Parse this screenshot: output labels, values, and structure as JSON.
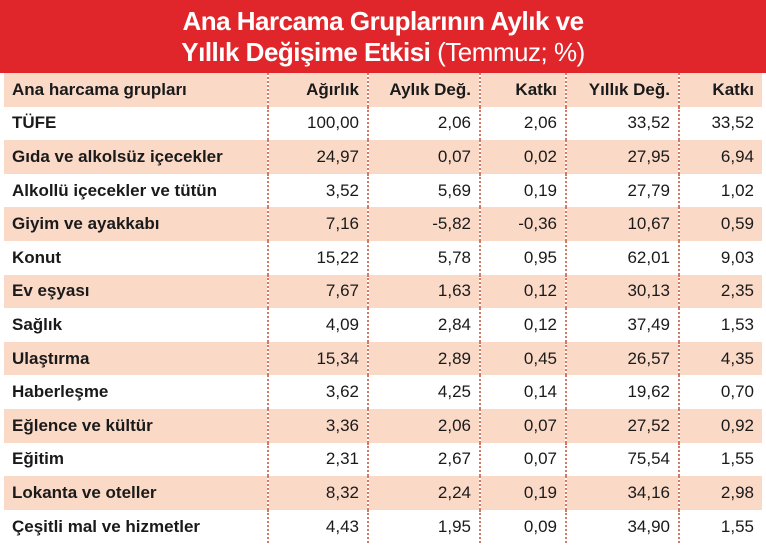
{
  "title": {
    "line1": "Ana Harcama Gruplarının Aylık ve",
    "line2_bold": "Yıllık Değişime Etkisi",
    "line2_normal": " (Temmuz; %)"
  },
  "colors": {
    "title_background": "#e0262b",
    "row_shade": "#fbd9c7",
    "divider": "#d27a66"
  },
  "chart_data": {
    "type": "table",
    "columns": [
      "Ana harcama grupları",
      "Ağırlık",
      "Aylık Değ.",
      "Katkı",
      "Yıllık Değ.",
      "Katkı"
    ],
    "rows": [
      [
        "TÜFE",
        "100,00",
        "2,06",
        "2,06",
        "33,52",
        "33,52"
      ],
      [
        "Gıda ve alkolsüz içecekler",
        "24,97",
        "0,07",
        "0,02",
        "27,95",
        "6,94"
      ],
      [
        "Alkollü içecekler ve tütün",
        "3,52",
        "5,69",
        "0,19",
        "27,79",
        "1,02"
      ],
      [
        "Giyim ve ayakkabı",
        "7,16",
        "-5,82",
        "-0,36",
        "10,67",
        "0,59"
      ],
      [
        "Konut",
        "15,22",
        "5,78",
        "0,95",
        "62,01",
        "9,03"
      ],
      [
        "Ev eşyası",
        "7,67",
        "1,63",
        "0,12",
        "30,13",
        "2,35"
      ],
      [
        "Sağlık",
        "4,09",
        "2,84",
        "0,12",
        "37,49",
        "1,53"
      ],
      [
        "Ulaştırma",
        "15,34",
        "2,89",
        "0,45",
        "26,57",
        "4,35"
      ],
      [
        "Haberleşme",
        "3,62",
        "4,25",
        "0,14",
        "19,62",
        "0,70"
      ],
      [
        "Eğlence ve kültür",
        "3,36",
        "2,06",
        "0,07",
        "27,52",
        "0,92"
      ],
      [
        "Eğitim",
        "2,31",
        "2,67",
        "0,07",
        "75,54",
        "1,55"
      ],
      [
        "Lokanta ve oteller",
        "8,32",
        "2,24",
        "0,19",
        "34,16",
        "2,98"
      ],
      [
        "Çeşitli mal ve hizmetler",
        "4,43",
        "1,95",
        "0,09",
        "34,90",
        "1,55"
      ]
    ]
  }
}
